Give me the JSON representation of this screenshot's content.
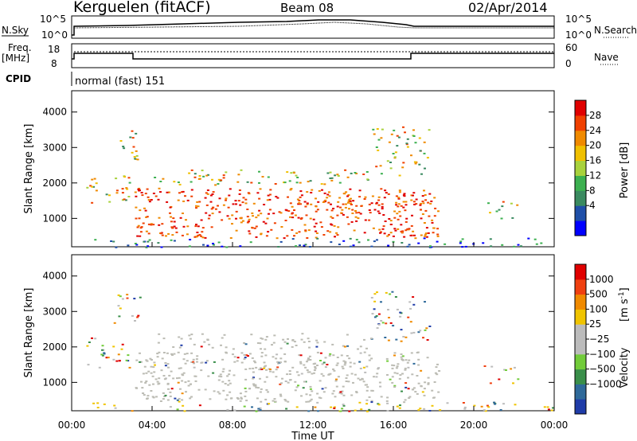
{
  "header": {
    "title": "Kerguelen (fitACF)",
    "beam": "Beam 08",
    "date": "02/Apr/2014"
  },
  "status_panels": {
    "nsky_label": "N.Sky",
    "nsearch_label": "N.Search",
    "nsky_ticks": [
      "10^5",
      "10^0"
    ],
    "freq_label": "Freq.",
    "freq_unit": "[MHz]",
    "freq_ticks": [
      "18",
      "8"
    ],
    "nave_label": "Nave",
    "nave_ticks": [
      "60",
      "0"
    ],
    "cpid_label": "CPID",
    "cpid_value": "normal (fast) 151"
  },
  "chart_data": [
    {
      "type": "heatmap",
      "ylabel": "Slant Range [km]",
      "xlabel": "Time UT",
      "x_ticks": [
        "00:00",
        "04:00",
        "08:00",
        "12:00",
        "16:00",
        "20:00",
        "00:00"
      ],
      "y_ticks": [
        1000,
        2000,
        3000,
        4000
      ],
      "ylim": [
        200,
        4600
      ],
      "colorbar": {
        "label": "Power [dB]",
        "ticks": [
          "28",
          "24",
          "20",
          "16",
          "12",
          "8",
          "4"
        ],
        "colors": [
          "#0000ff",
          "#1f4fa8",
          "#3a8a60",
          "#3cb050",
          "#a8d23c",
          "#f0c000",
          "#f08a00",
          "#f04000",
          "#e00000"
        ]
      },
      "ground_scatter_color": "#a0a0a0"
    },
    {
      "type": "heatmap",
      "ylabel": "Slant Range [km]",
      "xlabel": "Time UT",
      "x_ticks": [
        "00:00",
        "04:00",
        "08:00",
        "12:00",
        "16:00",
        "20:00",
        "00:00"
      ],
      "y_ticks": [
        1000,
        2000,
        3000,
        4000
      ],
      "ylim": [
        200,
        4600
      ],
      "colorbar": {
        "label": "Velocity",
        "unit": "[m s",
        "unit_sup": "-1",
        "unit_close": "]",
        "ticks": [
          "1000",
          "500",
          "100",
          "25",
          "−25",
          "−100",
          "−500",
          "−1000"
        ],
        "colors": [
          "#1f3ca8",
          "#2f6a9a",
          "#3a8f4a",
          "#72cc3a",
          "#bcbcbc",
          "#bcbcbc",
          "#f0c400",
          "#f08a00",
          "#f04010",
          "#e00000"
        ]
      },
      "ground_scatter_color": "#bcbcb4"
    }
  ]
}
